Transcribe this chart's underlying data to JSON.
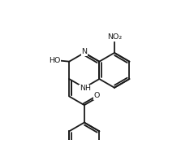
{
  "bg": "#ffffff",
  "lc": "#1a1a1a",
  "lw": 1.3,
  "fs": 6.8,
  "xlim": [
    -1.5,
    9.5
  ],
  "ylim": [
    -3.5,
    4.5
  ]
}
